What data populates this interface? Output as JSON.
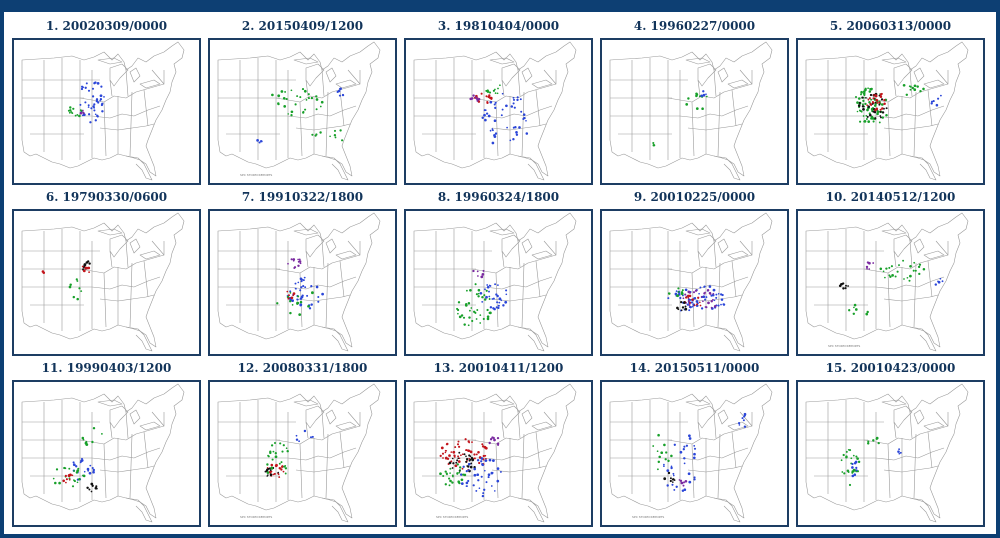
{
  "colors": {
    "background": "#0d3f73",
    "label": "#12345a",
    "border": "#1d3d63",
    "map_lines": "#9a9a9a",
    "report_green": "#18a02a",
    "report_blue": "#2b46d8",
    "report_red": "#c2141b",
    "report_black": "#111111",
    "report_purple": "#7a2aa0"
  },
  "panels": [
    {
      "label": "1. 20020309/0000",
      "caption": "",
      "icon": "severe-report-map",
      "dots": [
        {
          "color": "blue",
          "cx": 78,
          "cy": 62,
          "rx": 14,
          "ry": 22,
          "n": 40
        },
        {
          "color": "green",
          "cx": 60,
          "cy": 72,
          "rx": 8,
          "ry": 8,
          "n": 12
        },
        {
          "color": "purple",
          "cx": 68,
          "cy": 70,
          "rx": 4,
          "ry": 4,
          "n": 5
        }
      ]
    },
    {
      "label": "2. 20150409/1200",
      "caption": "SPC STORM REPORTS",
      "icon": "severe-report-map",
      "dots": [
        {
          "color": "green",
          "cx": 85,
          "cy": 62,
          "rx": 28,
          "ry": 14,
          "n": 30
        },
        {
          "color": "blue",
          "cx": 130,
          "cy": 52,
          "rx": 5,
          "ry": 4,
          "n": 6
        },
        {
          "color": "blue",
          "cx": 48,
          "cy": 100,
          "rx": 5,
          "ry": 3,
          "n": 4
        },
        {
          "color": "green",
          "cx": 120,
          "cy": 95,
          "rx": 20,
          "ry": 8,
          "n": 10
        }
      ]
    },
    {
      "label": "3. 19810404/0000",
      "caption": "",
      "icon": "severe-report-map",
      "dots": [
        {
          "color": "red",
          "cx": 78,
          "cy": 58,
          "rx": 10,
          "ry": 6,
          "n": 14
        },
        {
          "color": "purple",
          "cx": 70,
          "cy": 60,
          "rx": 6,
          "ry": 5,
          "n": 8
        },
        {
          "color": "blue",
          "cx": 100,
          "cy": 80,
          "rx": 24,
          "ry": 28,
          "n": 45
        },
        {
          "color": "green",
          "cx": 88,
          "cy": 48,
          "rx": 10,
          "ry": 6,
          "n": 10
        }
      ]
    },
    {
      "label": "4. 19960227/0000",
      "caption": "",
      "icon": "severe-report-map",
      "dots": [
        {
          "color": "green",
          "cx": 95,
          "cy": 62,
          "rx": 12,
          "ry": 10,
          "n": 10
        },
        {
          "color": "blue",
          "cx": 102,
          "cy": 55,
          "rx": 4,
          "ry": 4,
          "n": 4
        },
        {
          "color": "green",
          "cx": 50,
          "cy": 105,
          "rx": 3,
          "ry": 3,
          "n": 3
        }
      ]
    },
    {
      "label": "5. 20060313/0000",
      "caption": "",
      "icon": "severe-report-map",
      "dots": [
        {
          "color": "green",
          "cx": 72,
          "cy": 68,
          "rx": 18,
          "ry": 20,
          "n": 70
        },
        {
          "color": "black",
          "cx": 75,
          "cy": 66,
          "rx": 14,
          "ry": 14,
          "n": 30
        },
        {
          "color": "red",
          "cx": 78,
          "cy": 62,
          "rx": 10,
          "ry": 10,
          "n": 25
        },
        {
          "color": "green",
          "cx": 115,
          "cy": 48,
          "rx": 15,
          "ry": 8,
          "n": 12
        },
        {
          "color": "blue",
          "cx": 140,
          "cy": 60,
          "rx": 8,
          "ry": 6,
          "n": 6
        }
      ]
    },
    {
      "label": "6. 19790330/0600",
      "caption": "",
      "icon": "severe-report-map",
      "dots": [
        {
          "color": "black",
          "cx": 72,
          "cy": 55,
          "rx": 6,
          "ry": 5,
          "n": 8
        },
        {
          "color": "red",
          "cx": 72,
          "cy": 58,
          "rx": 5,
          "ry": 4,
          "n": 6
        },
        {
          "color": "green",
          "cx": 60,
          "cy": 80,
          "rx": 8,
          "ry": 15,
          "n": 8
        },
        {
          "color": "red",
          "cx": 30,
          "cy": 60,
          "rx": 2,
          "ry": 2,
          "n": 2
        }
      ]
    },
    {
      "label": "7. 19910322/1800",
      "caption": "",
      "icon": "severe-report-map",
      "dots": [
        {
          "color": "purple",
          "cx": 84,
          "cy": 52,
          "rx": 8,
          "ry": 5,
          "n": 12
        },
        {
          "color": "blue",
          "cx": 95,
          "cy": 82,
          "rx": 18,
          "ry": 16,
          "n": 35
        },
        {
          "color": "green",
          "cx": 88,
          "cy": 90,
          "rx": 22,
          "ry": 14,
          "n": 15
        },
        {
          "color": "red",
          "cx": 80,
          "cy": 84,
          "rx": 6,
          "ry": 4,
          "n": 6
        }
      ]
    },
    {
      "label": "8. 19960324/1800",
      "caption": "",
      "icon": "severe-report-map",
      "dots": [
        {
          "color": "green",
          "cx": 68,
          "cy": 95,
          "rx": 18,
          "ry": 22,
          "n": 40
        },
        {
          "color": "blue",
          "cx": 88,
          "cy": 85,
          "rx": 14,
          "ry": 14,
          "n": 30
        },
        {
          "color": "purple",
          "cx": 72,
          "cy": 62,
          "rx": 6,
          "ry": 6,
          "n": 6
        }
      ]
    },
    {
      "label": "9. 20010225/0000",
      "caption": "",
      "icon": "severe-report-map",
      "dots": [
        {
          "color": "blue",
          "cx": 95,
          "cy": 88,
          "rx": 30,
          "ry": 14,
          "n": 60
        },
        {
          "color": "purple",
          "cx": 100,
          "cy": 88,
          "rx": 20,
          "ry": 10,
          "n": 25
        },
        {
          "color": "red",
          "cx": 90,
          "cy": 92,
          "rx": 10,
          "ry": 8,
          "n": 12
        },
        {
          "color": "black",
          "cx": 80,
          "cy": 96,
          "rx": 6,
          "ry": 5,
          "n": 8
        },
        {
          "color": "green",
          "cx": 75,
          "cy": 82,
          "rx": 10,
          "ry": 6,
          "n": 8
        }
      ]
    },
    {
      "label": "10. 20140512/1200",
      "caption": "SPC STORM REPORTS",
      "icon": "severe-report-map",
      "dots": [
        {
          "color": "black",
          "cx": 46,
          "cy": 75,
          "rx": 5,
          "ry": 3,
          "n": 8
        },
        {
          "color": "green",
          "cx": 105,
          "cy": 60,
          "rx": 24,
          "ry": 12,
          "n": 25
        },
        {
          "color": "purple",
          "cx": 72,
          "cy": 55,
          "rx": 5,
          "ry": 4,
          "n": 6
        },
        {
          "color": "blue",
          "cx": 140,
          "cy": 72,
          "rx": 6,
          "ry": 5,
          "n": 5
        },
        {
          "color": "green",
          "cx": 60,
          "cy": 100,
          "rx": 10,
          "ry": 8,
          "n": 8
        }
      ]
    },
    {
      "label": "11. 19990403/1200",
      "caption": "",
      "icon": "severe-report-map",
      "dots": [
        {
          "color": "blue",
          "cx": 68,
          "cy": 88,
          "rx": 12,
          "ry": 12,
          "n": 20
        },
        {
          "color": "green",
          "cx": 55,
          "cy": 95,
          "rx": 16,
          "ry": 12,
          "n": 20
        },
        {
          "color": "red",
          "cx": 55,
          "cy": 98,
          "rx": 6,
          "ry": 6,
          "n": 10
        },
        {
          "color": "black",
          "cx": 78,
          "cy": 105,
          "rx": 6,
          "ry": 5,
          "n": 8
        },
        {
          "color": "green",
          "cx": 80,
          "cy": 55,
          "rx": 12,
          "ry": 10,
          "n": 8
        }
      ]
    },
    {
      "label": "12. 20080331/1800",
      "caption": "SPC STORM REPORTS",
      "icon": "severe-report-map",
      "dots": [
        {
          "color": "red",
          "cx": 65,
          "cy": 88,
          "rx": 10,
          "ry": 8,
          "n": 18
        },
        {
          "color": "black",
          "cx": 62,
          "cy": 90,
          "rx": 8,
          "ry": 6,
          "n": 12
        },
        {
          "color": "green",
          "cx": 68,
          "cy": 80,
          "rx": 12,
          "ry": 20,
          "n": 25
        },
        {
          "color": "blue",
          "cx": 95,
          "cy": 55,
          "rx": 10,
          "ry": 6,
          "n": 6
        }
      ]
    },
    {
      "label": "13. 20010411/1200",
      "caption": "SPC STORM REPORTS",
      "icon": "severe-report-map",
      "dots": [
        {
          "color": "red",
          "cx": 60,
          "cy": 72,
          "rx": 26,
          "ry": 16,
          "n": 60
        },
        {
          "color": "black",
          "cx": 58,
          "cy": 80,
          "rx": 16,
          "ry": 10,
          "n": 25
        },
        {
          "color": "blue",
          "cx": 75,
          "cy": 95,
          "rx": 22,
          "ry": 20,
          "n": 40
        },
        {
          "color": "green",
          "cx": 45,
          "cy": 92,
          "rx": 14,
          "ry": 12,
          "n": 25
        },
        {
          "color": "purple",
          "cx": 90,
          "cy": 60,
          "rx": 8,
          "ry": 6,
          "n": 8
        }
      ]
    },
    {
      "label": "14. 20150511/0000",
      "caption": "SPC STORM REPORTS",
      "icon": "severe-report-map",
      "dots": [
        {
          "color": "blue",
          "cx": 78,
          "cy": 80,
          "rx": 20,
          "ry": 30,
          "n": 30
        },
        {
          "color": "black",
          "cx": 68,
          "cy": 95,
          "rx": 6,
          "ry": 6,
          "n": 8
        },
        {
          "color": "purple",
          "cx": 82,
          "cy": 100,
          "rx": 6,
          "ry": 5,
          "n": 6
        },
        {
          "color": "green",
          "cx": 60,
          "cy": 70,
          "rx": 10,
          "ry": 20,
          "n": 12
        },
        {
          "color": "blue",
          "cx": 140,
          "cy": 40,
          "rx": 6,
          "ry": 10,
          "n": 8
        }
      ]
    },
    {
      "label": "15. 20010423/0000",
      "caption": "",
      "icon": "severe-report-map",
      "dots": [
        {
          "color": "green",
          "cx": 52,
          "cy": 85,
          "rx": 10,
          "ry": 18,
          "n": 25
        },
        {
          "color": "blue",
          "cx": 58,
          "cy": 88,
          "rx": 8,
          "ry": 8,
          "n": 8
        },
        {
          "color": "green",
          "cx": 78,
          "cy": 60,
          "rx": 10,
          "ry": 10,
          "n": 6
        },
        {
          "color": "blue",
          "cx": 98,
          "cy": 70,
          "rx": 6,
          "ry": 4,
          "n": 4
        }
      ]
    }
  ]
}
